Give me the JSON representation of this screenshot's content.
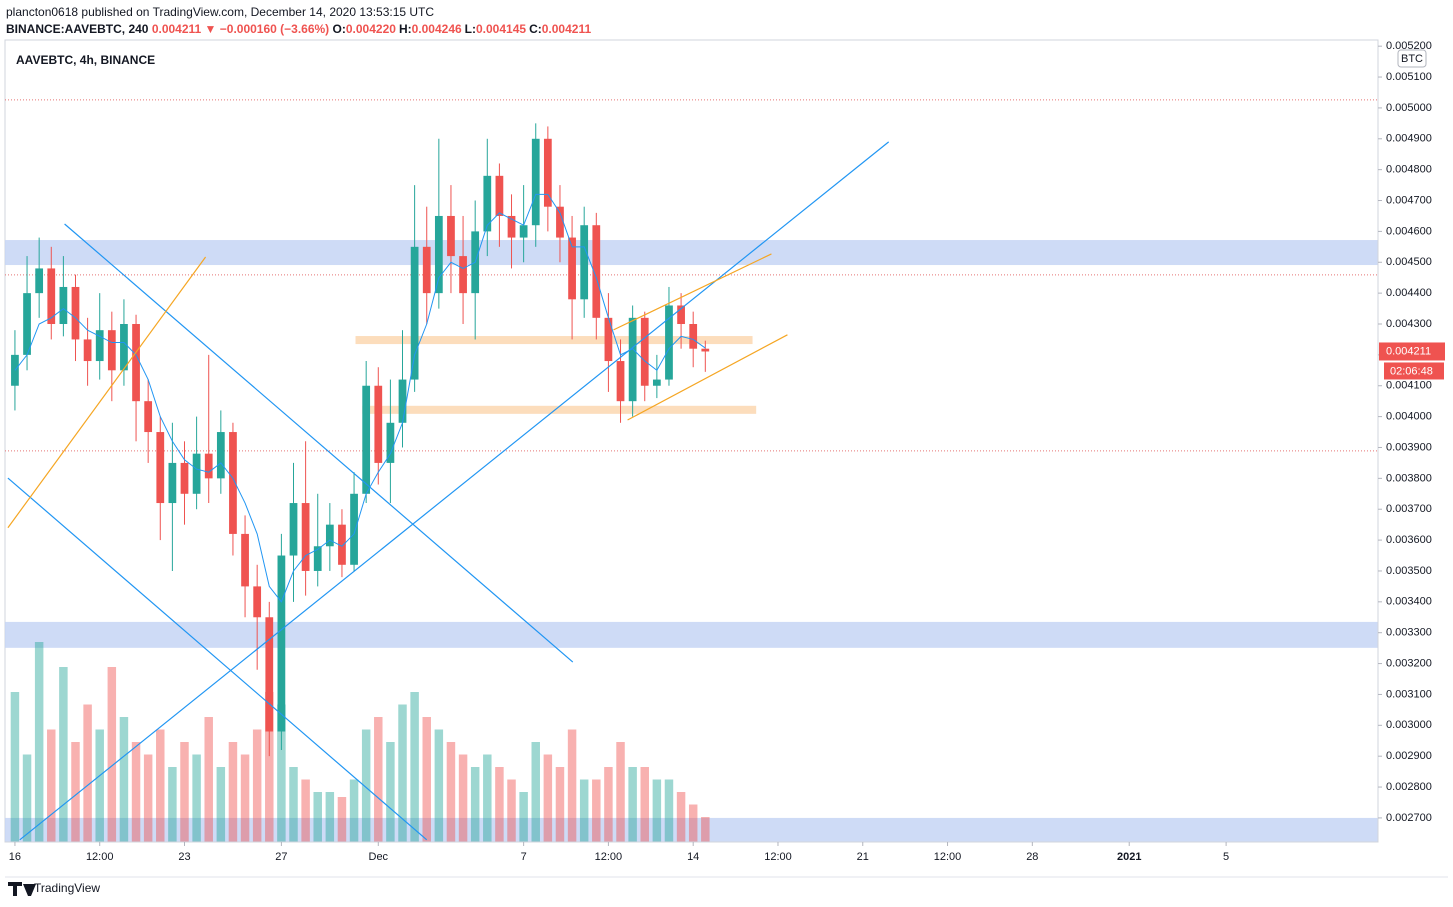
{
  "header": {
    "publisher": "plancton0618 published on TradingView.com, December 14, 2020 13:53:15 UTC",
    "symbol": "BINANCE:AAVEBTC, 240",
    "last": "0.004211",
    "change": "▼ −0.000160 (−3.66%)",
    "ohlc": [
      {
        "key": "O:",
        "value": "0.004220"
      },
      {
        "key": "H:",
        "value": "0.004246"
      },
      {
        "key": "L:",
        "value": "0.004145"
      },
      {
        "key": "C:",
        "value": "0.004211"
      }
    ]
  },
  "chart_data": {
    "type": "candlestick",
    "title": "AAVEBTC, 4h, BINANCE",
    "currency": "BTC",
    "countdown": "02:06:48",
    "up_color": "#26a69a",
    "down_color": "#ef5350",
    "ma_color": "#2196f3",
    "x": [
      0,
      0.5,
      1,
      1.5,
      2,
      2.5,
      3,
      3.5,
      4,
      4.5,
      5,
      5.5,
      6,
      6.5,
      7,
      7.5,
      8,
      8.5,
      9,
      9.5,
      10,
      10.5,
      11,
      11.5,
      12,
      12.5,
      13,
      13.5,
      14,
      14.5,
      15,
      15.5,
      16,
      16.5,
      17,
      17.5,
      18,
      18.5,
      19,
      19.5,
      20,
      20.5,
      21,
      21.5,
      22,
      22.5,
      23,
      23.5,
      24,
      24.5,
      25,
      25.5,
      26,
      26.5,
      27,
      27.5,
      28,
      28.5
    ],
    "open": [
      0.0041,
      0.0042,
      0.0044,
      0.00448,
      0.0043,
      0.00442,
      0.00425,
      0.00418,
      0.00428,
      0.00415,
      0.0043,
      0.00405,
      0.00395,
      0.00372,
      0.00385,
      0.00375,
      0.00388,
      0.0038,
      0.00395,
      0.00362,
      0.00345,
      0.00335,
      0.00298,
      0.00355,
      0.00372,
      0.0035,
      0.00358,
      0.00365,
      0.00352,
      0.00375,
      0.0041,
      0.00385,
      0.00398,
      0.00412,
      0.00455,
      0.0044,
      0.00465,
      0.00452,
      0.0044,
      0.0046,
      0.00478,
      0.00465,
      0.00458,
      0.00462,
      0.0049,
      0.00468,
      0.00458,
      0.00438,
      0.00462,
      0.00432,
      0.00418,
      0.00405,
      0.00432,
      0.0041,
      0.00412,
      0.00436,
      0.0043,
      0.00422
    ],
    "high": [
      0.00428,
      0.00452,
      0.00458,
      0.00455,
      0.00452,
      0.00446,
      0.00432,
      0.0044,
      0.00434,
      0.00438,
      0.00433,
      0.00412,
      0.004,
      0.00398,
      0.00392,
      0.004,
      0.0042,
      0.00402,
      0.00398,
      0.00368,
      0.00352,
      0.0034,
      0.00362,
      0.00385,
      0.00392,
      0.00375,
      0.00372,
      0.0037,
      0.00382,
      0.00418,
      0.00416,
      0.00412,
      0.00428,
      0.00475,
      0.00468,
      0.0049,
      0.00475,
      0.00465,
      0.0047,
      0.0049,
      0.00482,
      0.00472,
      0.00475,
      0.00495,
      0.00494,
      0.00475,
      0.00465,
      0.00468,
      0.00466,
      0.0044,
      0.00425,
      0.00436,
      0.00434,
      0.0042,
      0.00442,
      0.0044,
      0.00434,
      0.004246
    ],
    "low": [
      0.00402,
      0.00415,
      0.00432,
      0.00425,
      0.00426,
      0.00418,
      0.0041,
      0.00412,
      0.00405,
      0.0041,
      0.00392,
      0.00385,
      0.0036,
      0.0035,
      0.00365,
      0.0037,
      0.00372,
      0.00375,
      0.00355,
      0.00335,
      0.00318,
      0.0029,
      0.00292,
      0.0034,
      0.00342,
      0.00345,
      0.0035,
      0.00348,
      0.0035,
      0.00372,
      0.00378,
      0.00372,
      0.0039,
      0.00408,
      0.0043,
      0.00435,
      0.0044,
      0.0043,
      0.00425,
      0.00452,
      0.00455,
      0.00448,
      0.0045,
      0.00455,
      0.0046,
      0.0045,
      0.00425,
      0.00432,
      0.00425,
      0.00408,
      0.00398,
      0.004,
      0.00405,
      0.00406,
      0.0041,
      0.00422,
      0.00416,
      0.004145
    ],
    "close": [
      0.0042,
      0.0044,
      0.00448,
      0.0043,
      0.00442,
      0.00425,
      0.00418,
      0.00428,
      0.00415,
      0.0043,
      0.00405,
      0.00395,
      0.00372,
      0.00385,
      0.00375,
      0.00388,
      0.0038,
      0.00395,
      0.00362,
      0.00345,
      0.00335,
      0.00298,
      0.00355,
      0.00372,
      0.0035,
      0.00358,
      0.00365,
      0.00352,
      0.00375,
      0.0041,
      0.00385,
      0.00398,
      0.00412,
      0.00455,
      0.0044,
      0.00465,
      0.00452,
      0.0044,
      0.0046,
      0.00478,
      0.00465,
      0.00458,
      0.00462,
      0.0049,
      0.00468,
      0.00458,
      0.00438,
      0.00462,
      0.00432,
      0.00418,
      0.00405,
      0.00432,
      0.0041,
      0.00412,
      0.00436,
      0.0043,
      0.00422,
      0.004211
    ],
    "ma": [
      0.00415,
      0.0042,
      0.0043,
      0.00432,
      0.00435,
      0.00432,
      0.00428,
      0.00426,
      0.00424,
      0.00424,
      0.0042,
      0.00412,
      0.004,
      0.00392,
      0.00386,
      0.00383,
      0.00382,
      0.00385,
      0.0038,
      0.00372,
      0.00362,
      0.00345,
      0.0034,
      0.0035,
      0.00355,
      0.00357,
      0.0036,
      0.00358,
      0.00362,
      0.00375,
      0.00382,
      0.00388,
      0.00398,
      0.0042,
      0.0043,
      0.00445,
      0.0045,
      0.00448,
      0.0045,
      0.00462,
      0.00466,
      0.00464,
      0.00462,
      0.00472,
      0.00472,
      0.00466,
      0.00455,
      0.00455,
      0.00445,
      0.00432,
      0.0042,
      0.00422,
      0.00418,
      0.00415,
      0.00422,
      0.00426,
      0.00425,
      0.004222
    ],
    "volume": [
      60,
      35,
      80,
      45,
      70,
      40,
      55,
      45,
      70,
      50,
      40,
      35,
      45,
      30,
      40,
      35,
      50,
      30,
      40,
      35,
      45,
      60,
      55,
      30,
      25,
      20,
      20,
      18,
      25,
      45,
      50,
      40,
      55,
      60,
      50,
      45,
      40,
      35,
      30,
      35,
      30,
      25,
      20,
      40,
      35,
      30,
      45,
      25,
      25,
      30,
      40,
      30,
      30,
      25,
      25,
      20,
      15,
      10
    ],
    "xlim": [
      -0.41,
      56.27
    ],
    "ylim": [
      0.002622,
      0.00522
    ],
    "xticks": [
      {
        "value": 0,
        "label": "16"
      },
      {
        "value": 3.5,
        "label": "12:00"
      },
      {
        "value": 7,
        "label": "23"
      },
      {
        "value": 11,
        "label": "27"
      },
      {
        "value": 15,
        "label": "Dec"
      },
      {
        "value": 21,
        "label": "7"
      },
      {
        "value": 24.5,
        "label": "12:00"
      },
      {
        "value": 28,
        "label": "14"
      },
      {
        "value": 31.5,
        "label": "12:00"
      },
      {
        "value": 35,
        "label": "21"
      },
      {
        "value": 38.5,
        "label": "12:00"
      },
      {
        "value": 42,
        "label": "28"
      },
      {
        "value": 46,
        "label": "2021"
      },
      {
        "value": 50,
        "label": "5"
      }
    ],
    "yticks": [
      {
        "value": 0.0027,
        "label": "0.002700"
      },
      {
        "value": 0.0028,
        "label": "0.002800"
      },
      {
        "value": 0.0029,
        "label": "0.002900"
      },
      {
        "value": 0.003,
        "label": "0.003000"
      },
      {
        "value": 0.0031,
        "label": "0.003100"
      },
      {
        "value": 0.0032,
        "label": "0.003200"
      },
      {
        "value": 0.0033,
        "label": "0.003300"
      },
      {
        "value": 0.0034,
        "label": "0.003400"
      },
      {
        "value": 0.0035,
        "label": "0.003500"
      },
      {
        "value": 0.0036,
        "label": "0.003600"
      },
      {
        "value": 0.0037,
        "label": "0.003700"
      },
      {
        "value": 0.0038,
        "label": "0.003800"
      },
      {
        "value": 0.0039,
        "label": "0.003900"
      },
      {
        "value": 0.004,
        "label": "0.004000"
      },
      {
        "value": 0.0041,
        "label": "0.004100"
      },
      {
        "value": 0.0042,
        "label": "0.004200"
      },
      {
        "value": 0.0043,
        "label": "0.004300"
      },
      {
        "value": 0.0044,
        "label": "0.004400"
      },
      {
        "value": 0.0045,
        "label": "0.004500"
      },
      {
        "value": 0.0046,
        "label": "0.004600"
      },
      {
        "value": 0.0047,
        "label": "0.004700"
      },
      {
        "value": 0.0048,
        "label": "0.004800"
      },
      {
        "value": 0.0049,
        "label": "0.004900"
      },
      {
        "value": 0.005,
        "label": "0.005000"
      },
      {
        "value": 0.0051,
        "label": "0.005100"
      },
      {
        "value": 0.0052,
        "label": "0.005200"
      }
    ],
    "zones": [
      {
        "y": [
          0.004491,
          0.004572
        ],
        "color": "#c5d5f5"
      },
      {
        "y": [
          0.003251,
          0.003335
        ],
        "color": "#c5d5f5"
      },
      {
        "y": [
          0.002622,
          0.0027
        ],
        "color": "#c5d5f5"
      },
      {
        "y": [
          0.004235,
          0.004261
        ],
        "x": [
          14.06,
          30.45
        ],
        "color": "#fbd7b0"
      },
      {
        "y": [
          0.004009,
          0.004035
        ],
        "x": [
          14.34,
          30.6
        ],
        "color": "#fbd7b0"
      }
    ],
    "hlines": [
      {
        "y": 0.005026,
        "color": "#e57373"
      },
      {
        "y": 0.004459,
        "color": "#e57373"
      },
      {
        "y": 0.003889,
        "color": "#e57373"
      }
    ],
    "lines": [
      {
        "points": [
          [
            2.05,
            0.004624
          ],
          [
            23.03,
            0.003205
          ]
        ],
        "color": "#2196f3"
      },
      {
        "points": [
          [
            -0.29,
            0.003801
          ],
          [
            17.0,
            0.002629
          ]
        ],
        "color": "#2196f3"
      },
      {
        "points": [
          [
            0.2,
            0.002629
          ],
          [
            36.07,
            0.00489
          ]
        ],
        "color": "#2196f3"
      },
      {
        "points": [
          [
            -0.29,
            0.00364
          ],
          [
            7.87,
            0.004517
          ]
        ],
        "color": "#f5a623"
      },
      {
        "points": [
          [
            24.71,
            0.004281
          ],
          [
            31.23,
            0.004527
          ]
        ],
        "color": "#f5a623"
      },
      {
        "points": [
          [
            25.29,
            0.003989
          ],
          [
            31.89,
            0.004265
          ]
        ],
        "color": "#f5a623"
      }
    ]
  },
  "footer": {
    "brand": "TradingView"
  }
}
